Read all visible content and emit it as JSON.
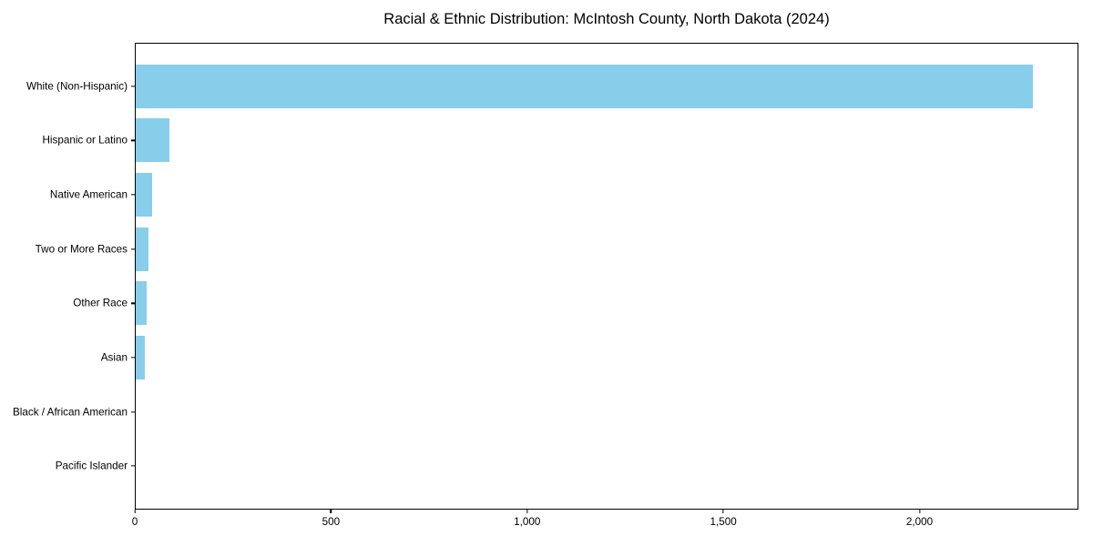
{
  "chart_data": {
    "type": "bar",
    "orientation": "horizontal",
    "title": "Racial & Ethnic Distribution: McIntosh County, North Dakota (2024)",
    "categories": [
      "White (Non-Hispanic)",
      "Hispanic or Latino",
      "Native American",
      "Two or More Races",
      "Other Race",
      "Asian",
      "Black / African American",
      "Pacific Islander"
    ],
    "values": [
      2290,
      86,
      43,
      32,
      28,
      24,
      0,
      0
    ],
    "xlabel": "",
    "ylabel": "",
    "xlim": [
      0,
      2405
    ],
    "xticks": [
      0,
      500,
      1000,
      1500,
      2000
    ],
    "xtick_labels": [
      "0",
      "500",
      "1,000",
      "1,500",
      "2,000"
    ],
    "bar_color": "#87CEEB",
    "grid": false,
    "legend": null,
    "background_color": "#ffffff",
    "spine_color": "#000000"
  }
}
